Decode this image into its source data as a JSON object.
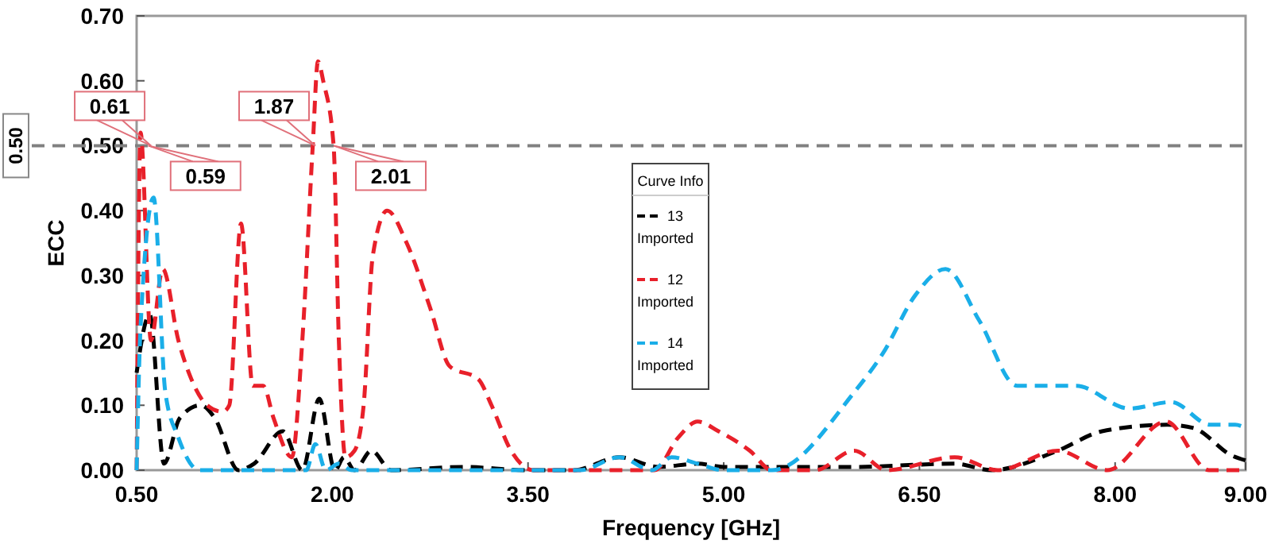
{
  "chart_data": {
    "type": "line",
    "xlabel": "Frequency [GHz]",
    "ylabel": "ECC",
    "legend_title": "Curve Info",
    "legend": "center",
    "line_style": "dashed",
    "marker": "none",
    "grid": false,
    "xlim": [
      0.5,
      9
    ],
    "ylim": [
      0,
      0.7
    ],
    "xticks": [
      {
        "value": 0.5,
        "label": "0.50"
      },
      {
        "value": 2,
        "label": "2.00"
      },
      {
        "value": 3.5,
        "label": "3.50"
      },
      {
        "value": 5,
        "label": "5.00"
      },
      {
        "value": 6.5,
        "label": "6.50"
      },
      {
        "value": 8,
        "label": "8.00"
      },
      {
        "value": 9,
        "label": "9.00"
      }
    ],
    "yticks": [
      {
        "value": 0,
        "label": "0.00"
      },
      {
        "value": 0.1,
        "label": "0.10"
      },
      {
        "value": 0.2,
        "label": "0.20"
      },
      {
        "value": 0.3,
        "label": "0.30"
      },
      {
        "value": 0.4,
        "label": "0.40"
      },
      {
        "value": 0.5,
        "label": "0.50"
      },
      {
        "value": 0.6,
        "label": "0.60"
      },
      {
        "value": 0.7,
        "label": "0.70"
      }
    ],
    "ref_lines": [
      {
        "axis": "y",
        "value": 0.5,
        "label": "0.50",
        "color": "#808080",
        "line_style": "dashed"
      }
    ],
    "annotations": [
      {
        "text": "0.61",
        "x": 0.61,
        "y": 0.5
      },
      {
        "text": "0.59",
        "x": 0.59,
        "y": 0.5
      },
      {
        "text": "1.87",
        "x": 1.87,
        "y": 0.5
      },
      {
        "text": "2.01",
        "x": 2.01,
        "y": 0.5
      }
    ],
    "series": [
      {
        "name": "13 Imported",
        "color": "#000000",
        "x": [
          0.5,
          0.6,
          0.71,
          0.83,
          0.99,
          1.1,
          1.28,
          1.4,
          1.62,
          1.77,
          1.9,
          2.02,
          2.09,
          2.17,
          2.3,
          2.45,
          3.0,
          3.5,
          3.85,
          4.2,
          4.5,
          4.8,
          5.0,
          5.37,
          6.0,
          6.77,
          7.05,
          7.56,
          7.9,
          8.4,
          8.6,
          8.9,
          9.0
        ],
        "values": [
          0.15,
          0.24,
          0.01,
          0.08,
          0.1,
          0.08,
          0.0,
          0.01,
          0.06,
          0.0,
          0.11,
          0.0,
          0.02,
          0.0,
          0.03,
          0.0,
          0.005,
          0.0,
          0.0,
          0.02,
          0.005,
          0.01,
          0.005,
          0.005,
          0.005,
          0.01,
          0.0,
          0.03,
          0.06,
          0.07,
          0.065,
          0.022,
          0.015
        ]
      },
      {
        "name": "12 Imported",
        "color": "#e8202a",
        "x": [
          0.5,
          0.53,
          0.61,
          0.7,
          0.82,
          0.92,
          1.04,
          1.16,
          1.21,
          1.3,
          1.39,
          1.47,
          1.55,
          1.69,
          1.77,
          1.85,
          1.89,
          1.93,
          2.01,
          2.05,
          2.1,
          2.17,
          2.24,
          2.31,
          2.42,
          2.57,
          2.75,
          2.9,
          3.12,
          3.22,
          3.37,
          3.54,
          4.1,
          4.47,
          4.65,
          4.8,
          4.96,
          5.2,
          5.37,
          5.7,
          6.0,
          6.25,
          6.77,
          7.1,
          7.56,
          7.94,
          8.39,
          8.72,
          9.0
        ],
        "values": [
          0.0,
          0.52,
          0.2,
          0.31,
          0.2,
          0.14,
          0.1,
          0.09,
          0.1,
          0.38,
          0.13,
          0.13,
          0.08,
          0.02,
          0.2,
          0.5,
          0.63,
          0.6,
          0.5,
          0.2,
          0.02,
          0.03,
          0.1,
          0.33,
          0.4,
          0.35,
          0.25,
          0.16,
          0.14,
          0.1,
          0.03,
          0.0,
          0.0,
          0.0,
          0.05,
          0.075,
          0.06,
          0.03,
          0.0,
          0.0,
          0.03,
          0.0,
          0.02,
          0.0,
          0.03,
          0.0,
          0.075,
          0.0,
          0.0
        ]
      },
      {
        "name": "14 Imported",
        "color": "#1aaee8",
        "x": [
          0.5,
          0.53,
          0.63,
          0.72,
          0.82,
          0.98,
          1.5,
          1.8,
          1.87,
          1.95,
          2.05,
          2.15,
          3.0,
          3.9,
          4.2,
          4.45,
          4.6,
          4.8,
          5.0,
          5.37,
          6.0,
          6.22,
          6.47,
          6.7,
          6.96,
          7.25,
          7.7,
          8.11,
          8.43,
          8.73,
          8.92,
          9.0
        ],
        "values": [
          0.0,
          0.22,
          0.42,
          0.12,
          0.05,
          0.0,
          0.0,
          0.0,
          0.04,
          0.0,
          0.01,
          0.0,
          0.0,
          0.0,
          0.02,
          0.0,
          0.02,
          0.01,
          0.0,
          0.0,
          0.12,
          0.18,
          0.27,
          0.31,
          0.23,
          0.13,
          0.13,
          0.095,
          0.105,
          0.07,
          0.07,
          0.065
        ]
      }
    ]
  }
}
